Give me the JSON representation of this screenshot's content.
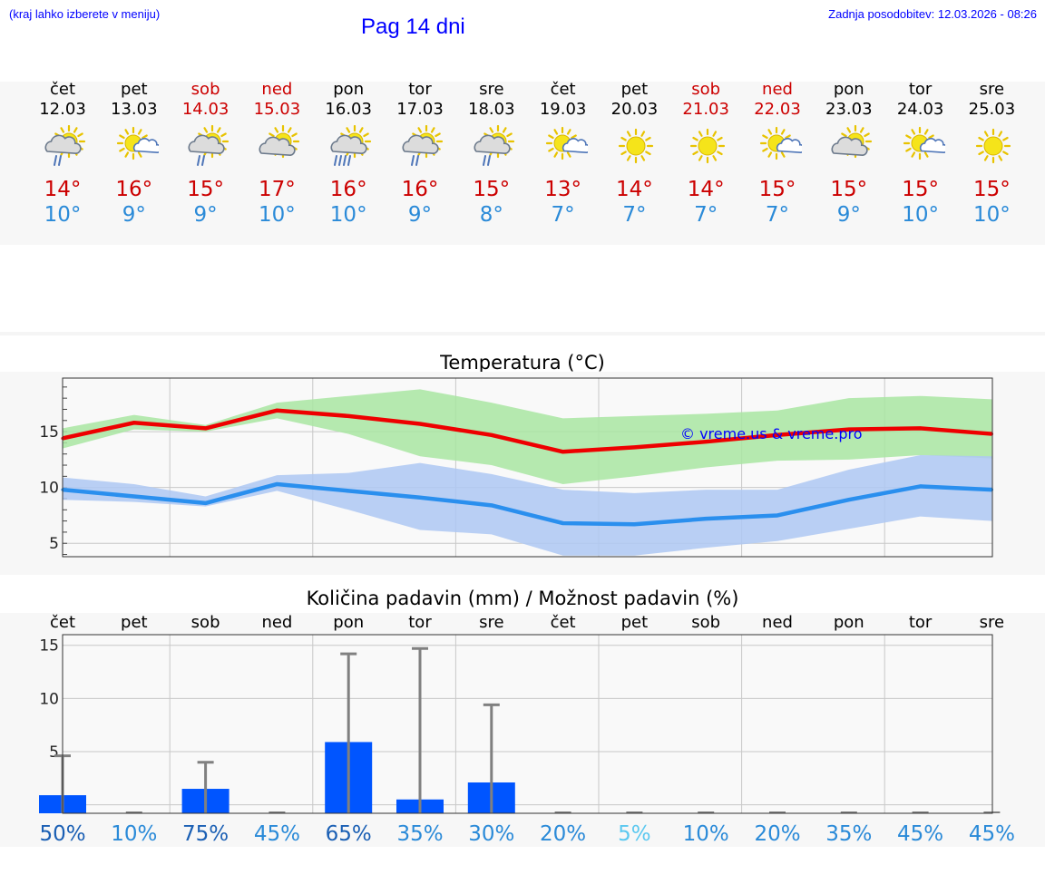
{
  "header": {
    "hint": "(kraj lahko izberete v meniju)",
    "title": "Pag 14 dni",
    "updated": "Zadnja posodobitev: 12.03.2026 - 08:26"
  },
  "days": [
    {
      "name": "čet",
      "date": "12.03",
      "weekend": false,
      "icon": "sun-cloud-rain-icon",
      "tmax": "14°",
      "tmin": "10°"
    },
    {
      "name": "pet",
      "date": "13.03",
      "weekend": false,
      "icon": "sun-small-cloud-icon",
      "tmax": "16°",
      "tmin": "9°"
    },
    {
      "name": "sob",
      "date": "14.03",
      "weekend": true,
      "icon": "sun-cloud-rain-icon",
      "tmax": "15°",
      "tmin": "9°"
    },
    {
      "name": "ned",
      "date": "15.03",
      "weekend": true,
      "icon": "sun-cloud-icon",
      "tmax": "17°",
      "tmin": "10°"
    },
    {
      "name": "pon",
      "date": "16.03",
      "weekend": false,
      "icon": "sun-cloud-heavy-rain-icon",
      "tmax": "16°",
      "tmin": "10°"
    },
    {
      "name": "tor",
      "date": "17.03",
      "weekend": false,
      "icon": "sun-cloud-rain-icon",
      "tmax": "16°",
      "tmin": "9°"
    },
    {
      "name": "sre",
      "date": "18.03",
      "weekend": false,
      "icon": "sun-cloud-rain-icon",
      "tmax": "15°",
      "tmin": "8°"
    },
    {
      "name": "čet",
      "date": "19.03",
      "weekend": false,
      "icon": "sun-small-cloud-icon",
      "tmax": "13°",
      "tmin": "7°"
    },
    {
      "name": "pet",
      "date": "20.03",
      "weekend": false,
      "icon": "sun-icon",
      "tmax": "14°",
      "tmin": "7°"
    },
    {
      "name": "sob",
      "date": "21.03",
      "weekend": true,
      "icon": "sun-icon",
      "tmax": "14°",
      "tmin": "7°"
    },
    {
      "name": "ned",
      "date": "22.03",
      "weekend": true,
      "icon": "sun-small-cloud-icon",
      "tmax": "15°",
      "tmin": "7°"
    },
    {
      "name": "pon",
      "date": "23.03",
      "weekend": false,
      "icon": "sun-cloud-icon",
      "tmax": "15°",
      "tmin": "9°"
    },
    {
      "name": "tor",
      "date": "24.03",
      "weekend": false,
      "icon": "sun-small-cloud-icon",
      "tmax": "15°",
      "tmin": "10°"
    },
    {
      "name": "sre",
      "date": "25.03",
      "weekend": false,
      "icon": "sun-icon",
      "tmax": "15°",
      "tmin": "10°"
    }
  ],
  "colors": {
    "max": "#ee0000",
    "min": "#2a8fee",
    "maxBand": "#a9e6a2",
    "minBand": "#aec8f3",
    "bar": "#0055ff",
    "whisker": "#808080"
  },
  "chart_data": [
    {
      "type": "line",
      "title": "Temperatura (°C)",
      "watermark": "© vreme.us & vreme.pro",
      "ylim": [
        3.8,
        19.8
      ],
      "yticks": [
        5,
        10,
        15
      ],
      "series": [
        {
          "name": "max",
          "values": [
            14.4,
            15.8,
            15.3,
            16.9,
            16.4,
            15.7,
            14.7,
            13.2,
            13.6,
            14.1,
            14.7,
            15.2,
            15.3,
            14.8
          ]
        },
        {
          "name": "min",
          "values": [
            9.8,
            9.2,
            8.6,
            10.3,
            9.7,
            9.1,
            8.4,
            6.8,
            6.7,
            7.2,
            7.5,
            8.9,
            10.1,
            9.8
          ]
        }
      ],
      "bands": [
        {
          "name": "max-range",
          "low": [
            13.5,
            15.2,
            15.0,
            16.2,
            14.8,
            12.8,
            12.0,
            10.3,
            11.0,
            11.8,
            12.4,
            12.5,
            12.9,
            12.6
          ],
          "high": [
            15.3,
            16.5,
            15.6,
            17.6,
            18.2,
            18.8,
            17.6,
            16.2,
            16.4,
            16.6,
            16.9,
            18.0,
            18.2,
            17.9
          ]
        },
        {
          "name": "min-range",
          "low": [
            8.9,
            8.7,
            8.3,
            9.7,
            8.0,
            6.2,
            5.8,
            3.9,
            3.9,
            4.6,
            5.2,
            6.3,
            7.4,
            7.0
          ],
          "high": [
            10.9,
            10.3,
            9.2,
            11.1,
            11.3,
            12.2,
            11.2,
            9.8,
            9.5,
            9.8,
            9.8,
            11.6,
            12.9,
            12.8
          ]
        }
      ]
    },
    {
      "type": "bar",
      "title": "Količina padavin (mm) / Možnost padavin (%)",
      "categories": [
        "čet",
        "pet",
        "sob",
        "ned",
        "pon",
        "tor",
        "sre",
        "čet",
        "pet",
        "sob",
        "ned",
        "pon",
        "tor",
        "sre"
      ],
      "values": [
        0.9,
        0,
        1.5,
        0,
        5.9,
        0.5,
        2.1,
        0,
        0,
        0,
        0,
        0,
        0,
        0
      ],
      "whisker_max": [
        4.6,
        0,
        4.0,
        0,
        14.2,
        14.7,
        9.4,
        0,
        0,
        0,
        0,
        0,
        0,
        0
      ],
      "ylim": [
        -0.8,
        16
      ],
      "yticks": [
        0,
        5,
        10,
        15
      ],
      "probability": [
        "50%",
        "10%",
        "75%",
        "45%",
        "65%",
        "35%",
        "30%",
        "20%",
        "5%",
        "10%",
        "20%",
        "35%",
        "45%",
        "45%"
      ],
      "probability_colors": [
        "#1a5fb4",
        "#2a8ad8",
        "#1a5fb4",
        "#2a8ad8",
        "#1a5fb4",
        "#2a8ad8",
        "#2a8ad8",
        "#2a8ad8",
        "#5bc8f0",
        "#2a8ad8",
        "#2a8ad8",
        "#2a8ad8",
        "#2a8ad8",
        "#2a8ad8"
      ]
    }
  ]
}
